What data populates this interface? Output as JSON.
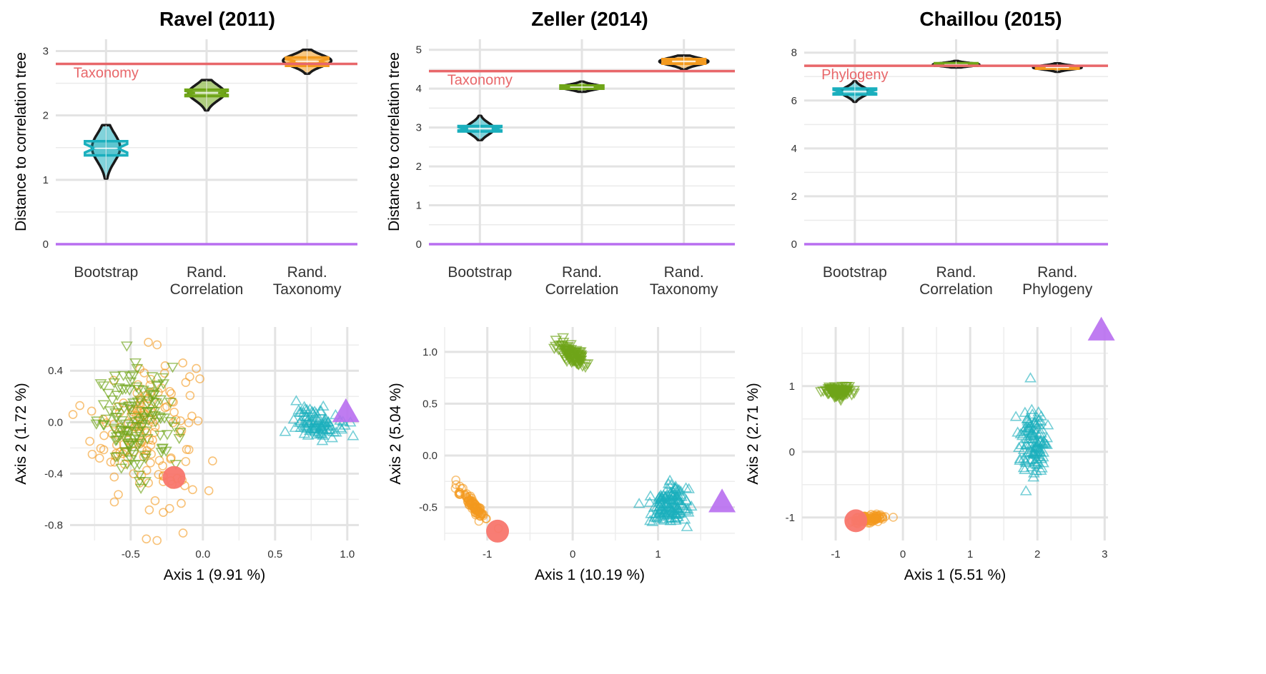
{
  "colors": {
    "bootstrap": "#1aafbd",
    "rand_correlation": "#6fa518",
    "rand_taxonomy": "#f39a1e",
    "reference": "#e8676a",
    "correlation_tree": "#b86ef0",
    "start_point": "#f8766d"
  },
  "chart_data": [
    {
      "type": "violin",
      "title": "Ravel (2011)",
      "ylabel": "Distance to correlation tree",
      "xlabel": "",
      "ylim": [
        0,
        3.05
      ],
      "yticks": [
        0,
        1,
        2,
        3
      ],
      "grid": true,
      "categories": [
        {
          "line1": "Bootstrap",
          "line2": ""
        },
        {
          "line1": "Rand.",
          "line2": "Correlation"
        },
        {
          "line1": "Rand.",
          "line2": "Taxonomy"
        }
      ],
      "violins": [
        {
          "min": 1.02,
          "max": 1.85,
          "q1": 1.38,
          "median": 1.49,
          "q3": 1.6,
          "maxwidth": 0.28,
          "peak": 1.5
        },
        {
          "min": 2.08,
          "max": 2.55,
          "q1": 2.3,
          "median": 2.35,
          "q3": 2.4,
          "maxwidth": 0.36,
          "peak": 2.35
        },
        {
          "min": 2.65,
          "max": 3.02,
          "q1": 2.77,
          "median": 2.84,
          "q3": 2.9,
          "maxwidth": 0.48,
          "peak": 2.85
        }
      ],
      "reference": {
        "label": "Taxonomy",
        "value": 2.8
      },
      "baseline": 0
    },
    {
      "type": "violin",
      "title": "Zeller (2014)",
      "ylabel": "Distance to correlation tree",
      "xlabel": "",
      "ylim": [
        0,
        5.05
      ],
      "yticks": [
        0,
        1,
        2,
        3,
        4,
        5
      ],
      "grid": true,
      "categories": [
        {
          "line1": "Bootstrap",
          "line2": ""
        },
        {
          "line1": "Rand.",
          "line2": "Correlation"
        },
        {
          "line1": "Rand.",
          "line2": "Taxonomy"
        }
      ],
      "violins": [
        {
          "min": 2.68,
          "max": 3.3,
          "q1": 2.9,
          "median": 2.97,
          "q3": 3.04,
          "maxwidth": 0.28,
          "peak": 2.97
        },
        {
          "min": 3.92,
          "max": 4.18,
          "q1": 4.0,
          "median": 4.04,
          "q3": 4.08,
          "maxwidth": 0.42,
          "peak": 4.04
        },
        {
          "min": 4.5,
          "max": 4.85,
          "q1": 4.64,
          "median": 4.7,
          "q3": 4.76,
          "maxwidth": 0.48,
          "peak": 4.7
        }
      ],
      "reference": {
        "label": "Taxonomy",
        "value": 4.45
      },
      "baseline": 0
    },
    {
      "type": "violin",
      "title": "Chaillou (2015)",
      "ylabel": "",
      "xlabel": "",
      "ylim": [
        0,
        8.2
      ],
      "yticks": [
        0,
        2,
        4,
        6,
        8
      ],
      "grid": true,
      "categories": [
        {
          "line1": "Bootstrap",
          "line2": ""
        },
        {
          "line1": "Rand.",
          "line2": "Correlation"
        },
        {
          "line1": "Rand.",
          "line2": "Phylogeny"
        }
      ],
      "violins": [
        {
          "min": 5.95,
          "max": 6.8,
          "q1": 6.25,
          "median": 6.37,
          "q3": 6.5,
          "maxwidth": 0.28,
          "peak": 6.37
        },
        {
          "min": 7.38,
          "max": 7.65,
          "q1": 7.45,
          "median": 7.5,
          "q3": 7.56,
          "maxwidth": 0.46,
          "peak": 7.5
        },
        {
          "min": 7.2,
          "max": 7.55,
          "q1": 7.33,
          "median": 7.38,
          "q3": 7.45,
          "maxwidth": 0.48,
          "peak": 7.38
        }
      ],
      "reference": {
        "label": "Phylogeny",
        "value": 7.45
      },
      "baseline": 0
    },
    {
      "type": "scatter",
      "title": "",
      "xlabel": "Axis 1 (9.91 %)",
      "ylabel": "Axis 2 (1.72 %)",
      "xlim": [
        -0.92,
        1.08
      ],
      "ylim": [
        -0.92,
        0.74
      ],
      "xticks": [
        -0.5,
        0.0,
        0.5,
        1.0
      ],
      "xticklabels": [
        "-0.5",
        "0.0",
        "0.5",
        "1.0"
      ],
      "yticks": [
        -0.8,
        -0.4,
        0.0,
        0.4
      ],
      "yticklabels": [
        "-0.8",
        "-0.4",
        "0.0",
        "0.4"
      ],
      "grid": true,
      "clusters": [
        {
          "series": "rand_taxonomy",
          "shape": "circle",
          "n": 150,
          "cx": -0.4,
          "cy": -0.05,
          "sx": 0.18,
          "sy": 0.3,
          "rot": 0
        },
        {
          "series": "rand_correlation",
          "shape": "triangle-down",
          "n": 130,
          "cx": -0.45,
          "cy": 0.0,
          "sx": 0.14,
          "sy": 0.2,
          "rot": 0
        },
        {
          "series": "bootstrap",
          "shape": "triangle-up",
          "n": 90,
          "cx": 0.8,
          "cy": 0.0,
          "sx": 0.08,
          "sy": 0.06,
          "rot": 0
        }
      ],
      "correlation_tree_point": [
        0.99,
        0.08
      ],
      "start_point": [
        -0.2,
        -0.43
      ]
    },
    {
      "type": "scatter",
      "title": "",
      "xlabel": "Axis 1 (10.19 %)",
      "ylabel": "Axis 2 (5.04 %)",
      "xlim": [
        -1.5,
        1.9
      ],
      "ylim": [
        -0.82,
        1.24
      ],
      "xticks": [
        -1,
        0,
        1
      ],
      "xticklabels": [
        "-1",
        "0",
        "1"
      ],
      "yticks": [
        -0.5,
        0.0,
        0.5,
        1.0
      ],
      "yticklabels": [
        "-0.5",
        "0.0",
        "0.5",
        "1.0"
      ],
      "grid": true,
      "clusters": [
        {
          "series": "rand_correlation",
          "shape": "triangle-down",
          "n": 90,
          "cx": 0.0,
          "cy": 0.97,
          "sx": 0.1,
          "sy": 0.035,
          "rot": -0.6
        },
        {
          "series": "rand_taxonomy",
          "shape": "circle",
          "n": 90,
          "cx": -1.16,
          "cy": -0.48,
          "sx": 0.12,
          "sy": 0.02,
          "rot": -0.75
        },
        {
          "series": "bootstrap",
          "shape": "triangle-up",
          "n": 130,
          "cx": 1.12,
          "cy": -0.48,
          "sx": 0.11,
          "sy": 0.1,
          "rot": 0
        }
      ],
      "correlation_tree_point": [
        1.75,
        -0.45
      ],
      "start_point": [
        -0.88,
        -0.73
      ]
    },
    {
      "type": "scatter",
      "title": "",
      "xlabel": "Axis 1 (5.51 %)",
      "ylabel": "Axis 2 (2.71 %)",
      "xlim": [
        -1.5,
        3.05
      ],
      "ylim": [
        -1.35,
        1.9
      ],
      "xticks": [
        -1,
        0,
        1,
        2,
        3
      ],
      "xticklabels": [
        "-1",
        "0",
        "1",
        "2",
        "3"
      ],
      "yticks": [
        -1,
        0,
        1
      ],
      "yticklabels": [
        "-1",
        "0",
        "1"
      ],
      "grid": true,
      "clusters": [
        {
          "series": "rand_correlation",
          "shape": "triangle-down",
          "n": 100,
          "cx": -0.95,
          "cy": 0.92,
          "sx": 0.1,
          "sy": 0.04,
          "rot": 0
        },
        {
          "series": "rand_taxonomy",
          "shape": "circle",
          "n": 90,
          "cx": -0.5,
          "cy": -1.02,
          "sx": 0.14,
          "sy": 0.03,
          "rot": 0.15
        },
        {
          "series": "bootstrap",
          "shape": "triangle-up",
          "n": 110,
          "cx": 1.95,
          "cy": 0.15,
          "sx": 0.1,
          "sy": 0.28,
          "rot": 0
        }
      ],
      "correlation_tree_point": [
        2.95,
        1.85
      ],
      "start_point": [
        -0.7,
        -1.05
      ]
    }
  ]
}
